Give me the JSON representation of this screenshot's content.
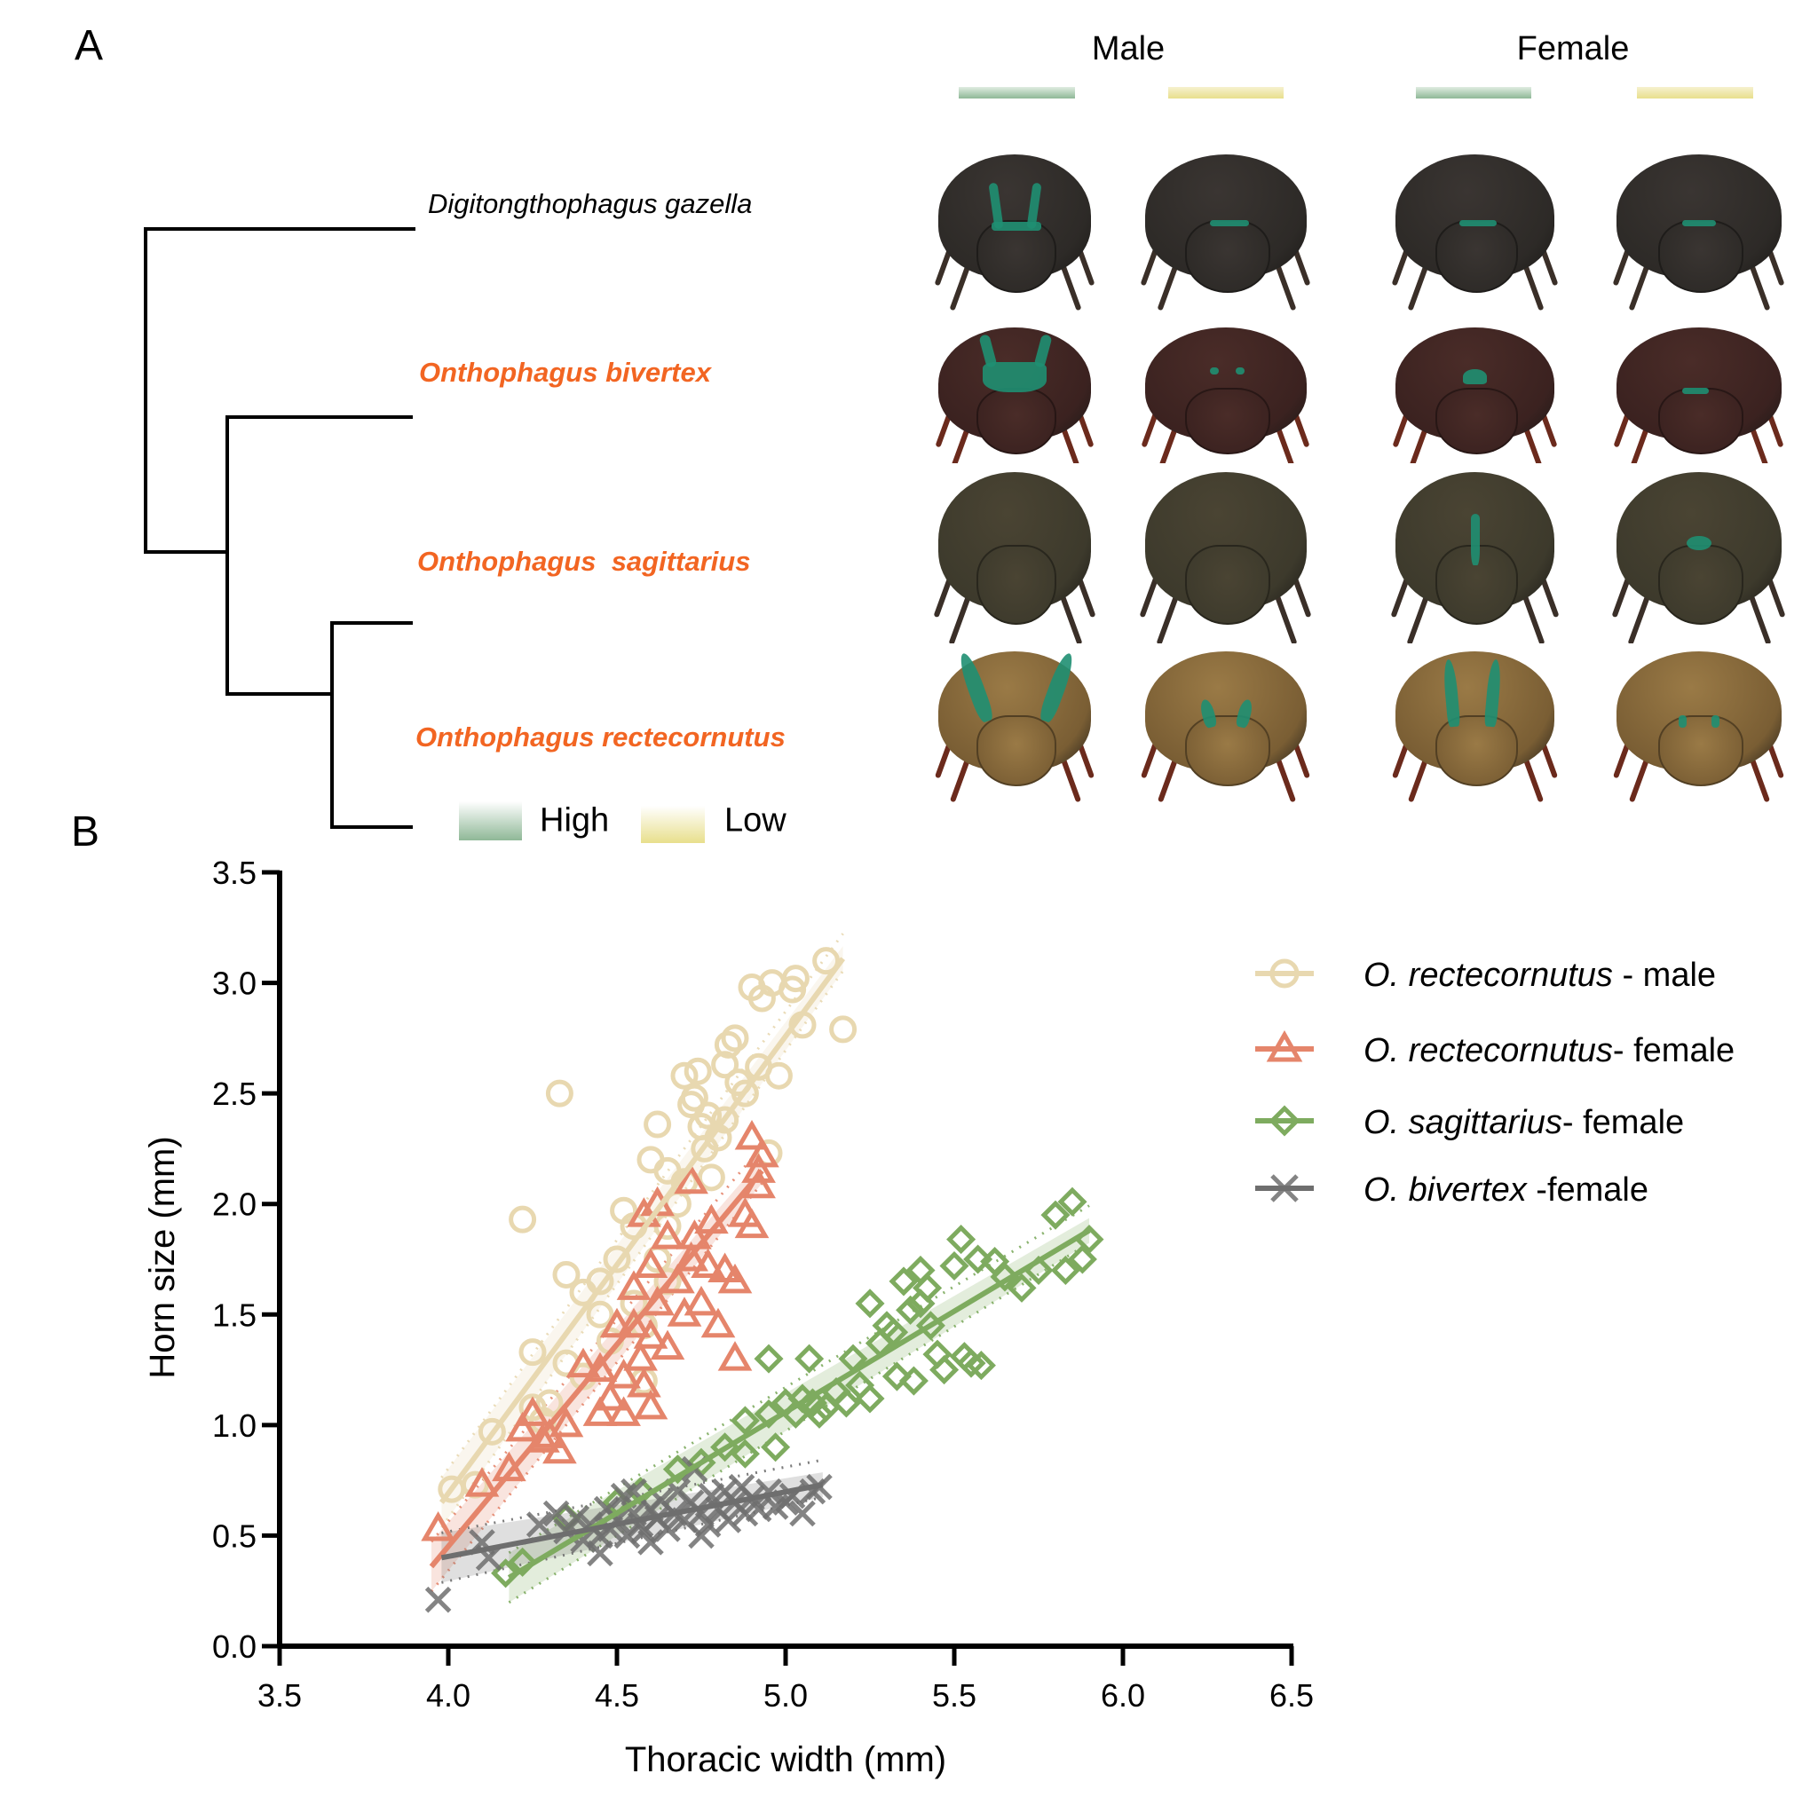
{
  "panel_a": {
    "label": "A",
    "column_headers": [
      "Male",
      "Female"
    ],
    "bar_colors": {
      "high": "#8fb897",
      "low": "#e8df8c"
    },
    "taxa": [
      {
        "name": "Digitongthophagus gazella",
        "highlight": false
      },
      {
        "name": "Onthophagus bivertex",
        "highlight": true
      },
      {
        "name": "Onthophagus  sagittarius",
        "highlight": true
      },
      {
        "name": "Onthophagus rectecornutus",
        "highlight": true
      }
    ],
    "highlight_color": "#f26522",
    "photo_columns": [
      "Male - High",
      "Male - Low",
      "Female - High",
      "Female - Low"
    ],
    "key": {
      "high_label": "High",
      "low_label": "Low"
    }
  },
  "panel_b": {
    "label": "B"
  },
  "chart_data": {
    "type": "scatter",
    "title": "",
    "xlabel": "Thoracic width (mm)",
    "ylabel": "Horn size (mm)",
    "xlim": [
      3.5,
      6.5
    ],
    "ylim": [
      0.0,
      3.5
    ],
    "xticks": [
      "3.5",
      "4.0",
      "4.5",
      "5.0",
      "5.5",
      "6.0",
      "6.5"
    ],
    "yticks": [
      "0.0",
      "0.5",
      "1.0",
      "1.5",
      "2.0",
      "2.5",
      "3.0",
      "3.5"
    ],
    "grid": false,
    "legend_position": "right",
    "series": [
      {
        "name": "O. rectecornutus - male",
        "legend_italic": "O. rectecornutus",
        "legend_suffix": " - male",
        "marker": "circle",
        "color": "#e8d8b0",
        "fit": {
          "x": [
            3.98,
            5.17
          ],
          "y": [
            0.65,
            3.11
          ]
        },
        "points": [
          [
            4.01,
            0.71
          ],
          [
            4.08,
            0.73
          ],
          [
            4.13,
            0.97
          ],
          [
            4.22,
            1.93
          ],
          [
            4.25,
            1.33
          ],
          [
            4.33,
            2.5
          ],
          [
            4.35,
            1.68
          ],
          [
            4.25,
            1.08
          ],
          [
            4.3,
            1.1
          ],
          [
            4.35,
            1.28
          ],
          [
            4.4,
            1.22
          ],
          [
            4.45,
            1.5
          ],
          [
            4.45,
            1.65
          ],
          [
            4.5,
            1.75
          ],
          [
            4.52,
            1.97
          ],
          [
            4.55,
            1.9
          ],
          [
            4.55,
            1.55
          ],
          [
            4.58,
            1.2
          ],
          [
            4.6,
            2.2
          ],
          [
            4.62,
            2.36
          ],
          [
            4.62,
            1.75
          ],
          [
            4.65,
            1.9
          ],
          [
            4.65,
            2.15
          ],
          [
            4.68,
            2.0
          ],
          [
            4.7,
            2.58
          ],
          [
            4.72,
            2.45
          ],
          [
            4.73,
            2.48
          ],
          [
            4.74,
            2.6
          ],
          [
            4.75,
            2.35
          ],
          [
            4.76,
            2.25
          ],
          [
            4.77,
            2.4
          ],
          [
            4.78,
            2.12
          ],
          [
            4.8,
            2.3
          ],
          [
            4.82,
            2.63
          ],
          [
            4.82,
            2.38
          ],
          [
            4.83,
            2.72
          ],
          [
            4.85,
            2.75
          ],
          [
            4.86,
            2.55
          ],
          [
            4.88,
            2.5
          ],
          [
            4.9,
            2.98
          ],
          [
            4.92,
            2.62
          ],
          [
            4.93,
            2.93
          ],
          [
            4.95,
            2.23
          ],
          [
            4.96,
            3.0
          ],
          [
            4.98,
            2.58
          ],
          [
            5.02,
            2.97
          ],
          [
            5.03,
            3.02
          ],
          [
            5.05,
            2.81
          ],
          [
            5.12,
            3.1
          ],
          [
            5.17,
            2.79
          ],
          [
            4.58,
            1.45
          ],
          [
            4.48,
            1.38
          ],
          [
            4.28,
            1.02
          ],
          [
            4.4,
            1.6
          ],
          [
            4.7,
            2.1
          ],
          [
            4.65,
            1.65
          ]
        ]
      },
      {
        "name": "O. rectecornutus- female",
        "legend_italic": "O. rectecornutus",
        "legend_suffix": "- female",
        "marker": "triangle",
        "color": "#e5856b",
        "fit": {
          "x": [
            3.95,
            4.93
          ],
          "y": [
            0.36,
            2.15
          ]
        },
        "points": [
          [
            3.97,
            0.53
          ],
          [
            4.1,
            0.73
          ],
          [
            4.18,
            0.8
          ],
          [
            4.22,
            0.98
          ],
          [
            4.25,
            1.05
          ],
          [
            4.28,
            0.93
          ],
          [
            4.3,
            0.95
          ],
          [
            4.33,
            0.88
          ],
          [
            4.35,
            1.0
          ],
          [
            4.4,
            1.27
          ],
          [
            4.45,
            1.05
          ],
          [
            4.48,
            1.12
          ],
          [
            4.52,
            1.05
          ],
          [
            4.52,
            1.22
          ],
          [
            4.55,
            1.45
          ],
          [
            4.55,
            1.62
          ],
          [
            4.57,
            1.3
          ],
          [
            4.58,
            1.18
          ],
          [
            4.58,
            1.95
          ],
          [
            4.6,
            1.72
          ],
          [
            4.6,
            1.4
          ],
          [
            4.62,
            1.55
          ],
          [
            4.62,
            2.0
          ],
          [
            4.65,
            1.85
          ],
          [
            4.65,
            1.35
          ],
          [
            4.68,
            1.65
          ],
          [
            4.7,
            1.5
          ],
          [
            4.72,
            2.1
          ],
          [
            4.72,
            1.75
          ],
          [
            4.73,
            1.85
          ],
          [
            4.75,
            1.55
          ],
          [
            4.77,
            1.72
          ],
          [
            4.78,
            1.92
          ],
          [
            4.8,
            1.45
          ],
          [
            4.82,
            1.7
          ],
          [
            4.85,
            1.3
          ],
          [
            4.85,
            1.65
          ],
          [
            4.88,
            1.95
          ],
          [
            4.9,
            2.3
          ],
          [
            4.9,
            1.9
          ],
          [
            4.92,
            2.15
          ],
          [
            4.93,
            2.22
          ],
          [
            4.92,
            2.08
          ],
          [
            4.5,
            1.45
          ],
          [
            4.45,
            1.25
          ],
          [
            4.6,
            1.08
          ]
        ]
      },
      {
        "name": "O. sagittarius- female",
        "legend_italic": "O. sagittarius",
        "legend_suffix": "- female",
        "marker": "diamond",
        "color": "#7eab5f",
        "fit": {
          "x": [
            4.18,
            5.9
          ],
          "y": [
            0.31,
            1.88
          ]
        },
        "points": [
          [
            4.17,
            0.33
          ],
          [
            4.22,
            0.38
          ],
          [
            4.35,
            0.58
          ],
          [
            4.5,
            0.65
          ],
          [
            4.57,
            0.7
          ],
          [
            4.68,
            0.8
          ],
          [
            4.75,
            0.83
          ],
          [
            4.82,
            0.9
          ],
          [
            4.88,
            0.87
          ],
          [
            4.95,
            1.05
          ],
          [
            4.97,
            0.9
          ],
          [
            4.95,
            1.3
          ],
          [
            5.03,
            1.05
          ],
          [
            5.05,
            1.12
          ],
          [
            5.07,
            1.3
          ],
          [
            5.08,
            1.1
          ],
          [
            5.1,
            1.05
          ],
          [
            5.12,
            1.08
          ],
          [
            5.15,
            1.15
          ],
          [
            5.18,
            1.1
          ],
          [
            5.2,
            1.3
          ],
          [
            5.22,
            1.18
          ],
          [
            5.25,
            1.55
          ],
          [
            5.28,
            1.37
          ],
          [
            5.3,
            1.45
          ],
          [
            5.32,
            1.42
          ],
          [
            5.33,
            1.22
          ],
          [
            5.35,
            1.65
          ],
          [
            5.37,
            1.52
          ],
          [
            5.38,
            1.2
          ],
          [
            5.4,
            1.55
          ],
          [
            5.4,
            1.7
          ],
          [
            5.42,
            1.62
          ],
          [
            5.43,
            1.45
          ],
          [
            5.45,
            1.32
          ],
          [
            5.47,
            1.25
          ],
          [
            5.5,
            1.72
          ],
          [
            5.52,
            1.84
          ],
          [
            5.53,
            1.31
          ],
          [
            5.55,
            1.28
          ],
          [
            5.57,
            1.75
          ],
          [
            5.58,
            1.27
          ],
          [
            5.62,
            1.74
          ],
          [
            5.65,
            1.67
          ],
          [
            5.7,
            1.62
          ],
          [
            5.75,
            1.7
          ],
          [
            5.8,
            1.95
          ],
          [
            5.85,
            2.01
          ],
          [
            5.83,
            1.7
          ],
          [
            5.88,
            1.75
          ],
          [
            5.9,
            1.84
          ],
          [
            5.25,
            1.12
          ],
          [
            5.0,
            1.1
          ],
          [
            4.88,
            1.02
          ]
        ]
      },
      {
        "name": "O. bivertex -female",
        "legend_italic": "O. bivertex",
        "legend_suffix": " -female",
        "marker": "cross",
        "color": "#6e6e6e",
        "fit": {
          "x": [
            3.98,
            5.11
          ],
          "y": [
            0.4,
            0.73
          ]
        },
        "points": [
          [
            3.97,
            0.21
          ],
          [
            4.1,
            0.47
          ],
          [
            4.12,
            0.4
          ],
          [
            4.27,
            0.55
          ],
          [
            4.35,
            0.52
          ],
          [
            4.38,
            0.58
          ],
          [
            4.4,
            0.48
          ],
          [
            4.42,
            0.55
          ],
          [
            4.45,
            0.5
          ],
          [
            4.47,
            0.62
          ],
          [
            4.48,
            0.53
          ],
          [
            4.5,
            0.57
          ],
          [
            4.52,
            0.68
          ],
          [
            4.53,
            0.5
          ],
          [
            4.55,
            0.6
          ],
          [
            4.57,
            0.55
          ],
          [
            4.58,
            0.52
          ],
          [
            4.6,
            0.62
          ],
          [
            4.62,
            0.58
          ],
          [
            4.63,
            0.66
          ],
          [
            4.65,
            0.53
          ],
          [
            4.67,
            0.6
          ],
          [
            4.68,
            0.7
          ],
          [
            4.7,
            0.57
          ],
          [
            4.72,
            0.65
          ],
          [
            4.73,
            0.8
          ],
          [
            4.75,
            0.6
          ],
          [
            4.77,
            0.55
          ],
          [
            4.78,
            0.68
          ],
          [
            4.8,
            0.62
          ],
          [
            4.82,
            0.7
          ],
          [
            4.83,
            0.57
          ],
          [
            4.85,
            0.65
          ],
          [
            4.87,
            0.72
          ],
          [
            4.88,
            0.6
          ],
          [
            4.9,
            0.67
          ],
          [
            4.92,
            0.62
          ],
          [
            4.95,
            0.7
          ],
          [
            4.97,
            0.63
          ],
          [
            5.0,
            0.65
          ],
          [
            5.02,
            0.68
          ],
          [
            5.05,
            0.6
          ],
          [
            5.08,
            0.7
          ],
          [
            5.1,
            0.72
          ],
          [
            4.45,
            0.42
          ],
          [
            4.6,
            0.47
          ],
          [
            4.75,
            0.5
          ],
          [
            4.32,
            0.6
          ],
          [
            4.55,
            0.7
          ]
        ]
      }
    ]
  }
}
